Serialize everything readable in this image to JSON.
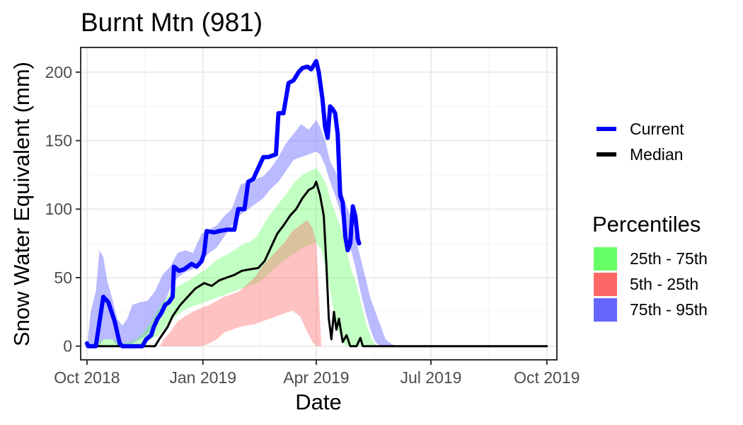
{
  "chart_data": {
    "type": "area",
    "title": "Burnt Mtn (981)",
    "xlabel": "Date",
    "ylabel": "Snow Water Equivalent (mm)",
    "x_ticks": [
      "Oct 2018",
      "Jan 2019",
      "Apr 2019",
      "Jul 2019",
      "Oct 2019"
    ],
    "x_tick_dates": [
      "2018-10-01",
      "2019-01-01",
      "2019-04-01",
      "2019-07-01",
      "2019-10-01"
    ],
    "y_ticks": [
      0,
      50,
      100,
      150,
      200
    ],
    "xlim": [
      "2018-09-26",
      "2019-10-09"
    ],
    "ylim": [
      -10,
      218
    ],
    "grid": true,
    "legend": {
      "placement": "right",
      "lines": [
        {
          "name": "Current",
          "color": "#0000ff"
        },
        {
          "name": "Median",
          "color": "#000000"
        }
      ],
      "percentiles_title": "Percentiles",
      "fills": [
        {
          "name": "25th - 75th",
          "color": "#66ff66"
        },
        {
          "name": "5th - 25th",
          "color": "#ff6666"
        },
        {
          "name": "75th - 95th",
          "color": "#6666ff"
        }
      ]
    },
    "bands": [
      {
        "name": "75th - 95th",
        "color": "#6666ff",
        "opacity": 0.45,
        "points": [
          [
            "2018-10-01",
            0,
            0
          ],
          [
            "2018-10-04",
            0,
            25
          ],
          [
            "2018-10-08",
            0,
            40
          ],
          [
            "2018-10-11",
            0,
            70
          ],
          [
            "2018-10-14",
            5,
            65
          ],
          [
            "2018-10-17",
            5,
            48
          ],
          [
            "2018-10-21",
            5,
            35
          ],
          [
            "2018-10-25",
            0,
            20
          ],
          [
            "2018-10-29",
            0,
            15
          ],
          [
            "2018-11-02",
            0,
            20
          ],
          [
            "2018-11-06",
            2,
            30
          ],
          [
            "2018-11-12",
            5,
            32
          ],
          [
            "2018-11-18",
            8,
            33
          ],
          [
            "2018-11-24",
            15,
            40
          ],
          [
            "2018-11-30",
            28,
            52
          ],
          [
            "2018-12-06",
            42,
            58
          ],
          [
            "2018-12-12",
            50,
            68
          ],
          [
            "2018-12-18",
            54,
            70
          ],
          [
            "2018-12-24",
            56,
            68
          ],
          [
            "2018-12-31",
            62,
            82
          ],
          [
            "2019-01-06",
            68,
            85
          ],
          [
            "2019-01-12",
            72,
            88
          ],
          [
            "2019-01-18",
            80,
            95
          ],
          [
            "2019-01-24",
            88,
            100
          ],
          [
            "2019-01-31",
            96,
            118
          ],
          [
            "2019-02-06",
            100,
            120
          ],
          [
            "2019-02-12",
            104,
            122
          ],
          [
            "2019-02-18",
            108,
            124
          ],
          [
            "2019-02-24",
            115,
            130
          ],
          [
            "2019-03-02",
            120,
            138
          ],
          [
            "2019-03-08",
            128,
            148
          ],
          [
            "2019-03-14",
            136,
            155
          ],
          [
            "2019-03-20",
            138,
            162
          ],
          [
            "2019-03-26",
            140,
            158
          ],
          [
            "2019-04-01",
            142,
            165
          ],
          [
            "2019-04-04",
            140,
            160
          ],
          [
            "2019-04-08",
            132,
            150
          ],
          [
            "2019-04-12",
            120,
            135
          ],
          [
            "2019-04-16",
            110,
            128
          ],
          [
            "2019-04-20",
            98,
            118
          ],
          [
            "2019-04-24",
            85,
            105
          ],
          [
            "2019-04-28",
            72,
            95
          ],
          [
            "2019-05-02",
            58,
            80
          ],
          [
            "2019-05-06",
            40,
            65
          ],
          [
            "2019-05-10",
            25,
            50
          ],
          [
            "2019-05-14",
            12,
            35
          ],
          [
            "2019-05-18",
            3,
            25
          ],
          [
            "2019-05-22",
            0,
            15
          ],
          [
            "2019-05-26",
            0,
            5
          ],
          [
            "2019-05-30",
            0,
            2
          ],
          [
            "2019-06-03",
            0,
            0
          ]
        ]
      },
      {
        "name": "25th - 75th",
        "color": "#66ff66",
        "opacity": 0.4,
        "points": [
          [
            "2018-10-01",
            0,
            0
          ],
          [
            "2018-10-08",
            0,
            3
          ],
          [
            "2018-10-14",
            0,
            5
          ],
          [
            "2018-10-21",
            0,
            5
          ],
          [
            "2018-10-28",
            0,
            2
          ],
          [
            "2018-11-03",
            0,
            3
          ],
          [
            "2018-11-09",
            0,
            5
          ],
          [
            "2018-11-15",
            2,
            10
          ],
          [
            "2018-11-21",
            5,
            18
          ],
          [
            "2018-11-27",
            8,
            28
          ],
          [
            "2018-12-03",
            15,
            35
          ],
          [
            "2018-12-09",
            20,
            42
          ],
          [
            "2018-12-15",
            25,
            45
          ],
          [
            "2018-12-21",
            28,
            48
          ],
          [
            "2018-12-27",
            30,
            52
          ],
          [
            "2019-01-02",
            32,
            55
          ],
          [
            "2019-01-08",
            34,
            60
          ],
          [
            "2019-01-14",
            36,
            64
          ],
          [
            "2019-01-20",
            38,
            67
          ],
          [
            "2019-01-26",
            40,
            70
          ],
          [
            "2019-02-01",
            42,
            74
          ],
          [
            "2019-02-07",
            44,
            76
          ],
          [
            "2019-02-13",
            46,
            80
          ],
          [
            "2019-02-19",
            50,
            90
          ],
          [
            "2019-02-25",
            55,
            98
          ],
          [
            "2019-03-03",
            60,
            105
          ],
          [
            "2019-03-09",
            64,
            112
          ],
          [
            "2019-03-15",
            68,
            120
          ],
          [
            "2019-03-21",
            72,
            125
          ],
          [
            "2019-03-27",
            74,
            128
          ],
          [
            "2019-04-01",
            76,
            130
          ],
          [
            "2019-04-05",
            70,
            125
          ],
          [
            "2019-04-09",
            55,
            118
          ],
          [
            "2019-04-13",
            35,
            105
          ],
          [
            "2019-04-17",
            15,
            95
          ],
          [
            "2019-04-21",
            5,
            85
          ],
          [
            "2019-04-25",
            0,
            70
          ],
          [
            "2019-04-29",
            0,
            55
          ],
          [
            "2019-05-03",
            0,
            45
          ],
          [
            "2019-05-07",
            0,
            30
          ],
          [
            "2019-05-11",
            0,
            15
          ],
          [
            "2019-05-15",
            0,
            5
          ],
          [
            "2019-05-19",
            0,
            0
          ]
        ]
      },
      {
        "name": "5th - 25th",
        "color": "#ff6666",
        "opacity": 0.4,
        "points": [
          [
            "2018-11-28",
            0,
            0
          ],
          [
            "2018-12-01",
            0,
            5
          ],
          [
            "2018-12-06",
            0,
            10
          ],
          [
            "2018-12-12",
            0,
            18
          ],
          [
            "2018-12-18",
            0,
            22
          ],
          [
            "2018-12-24",
            0,
            25
          ],
          [
            "2018-12-31",
            0,
            28
          ],
          [
            "2019-01-06",
            2,
            30
          ],
          [
            "2019-01-12",
            5,
            33
          ],
          [
            "2019-01-18",
            10,
            36
          ],
          [
            "2019-01-24",
            12,
            38
          ],
          [
            "2019-01-30",
            14,
            40
          ],
          [
            "2019-02-05",
            15,
            45
          ],
          [
            "2019-02-11",
            16,
            50
          ],
          [
            "2019-02-17",
            18,
            58
          ],
          [
            "2019-02-23",
            20,
            64
          ],
          [
            "2019-03-01",
            22,
            70
          ],
          [
            "2019-03-07",
            24,
            76
          ],
          [
            "2019-03-13",
            26,
            84
          ],
          [
            "2019-03-19",
            22,
            88
          ],
          [
            "2019-03-25",
            10,
            92
          ],
          [
            "2019-03-29",
            3,
            86
          ],
          [
            "2019-04-01",
            0,
            76
          ],
          [
            "2019-04-03",
            0,
            40
          ],
          [
            "2019-04-05",
            0,
            0
          ]
        ]
      }
    ],
    "series": [
      {
        "name": "Median",
        "color": "#000000",
        "points": [
          [
            "2018-10-01",
            0
          ],
          [
            "2018-11-24",
            0
          ],
          [
            "2018-11-28",
            6
          ],
          [
            "2018-12-04",
            14
          ],
          [
            "2018-12-08",
            22
          ],
          [
            "2018-12-14",
            30
          ],
          [
            "2018-12-20",
            36
          ],
          [
            "2018-12-26",
            42
          ],
          [
            "2019-01-02",
            46
          ],
          [
            "2019-01-08",
            44
          ],
          [
            "2019-01-14",
            48
          ],
          [
            "2019-01-20",
            50
          ],
          [
            "2019-01-26",
            52
          ],
          [
            "2019-02-01",
            55
          ],
          [
            "2019-02-07",
            56
          ],
          [
            "2019-02-14",
            57
          ],
          [
            "2019-02-19",
            62
          ],
          [
            "2019-02-24",
            72
          ],
          [
            "2019-03-01",
            82
          ],
          [
            "2019-03-06",
            88
          ],
          [
            "2019-03-11",
            95
          ],
          [
            "2019-03-16",
            100
          ],
          [
            "2019-03-21",
            108
          ],
          [
            "2019-03-26",
            114
          ],
          [
            "2019-03-30",
            116
          ],
          [
            "2019-04-01",
            120
          ],
          [
            "2019-04-04",
            110
          ],
          [
            "2019-04-07",
            95
          ],
          [
            "2019-04-09",
            60
          ],
          [
            "2019-04-11",
            20
          ],
          [
            "2019-04-13",
            5
          ],
          [
            "2019-04-15",
            25
          ],
          [
            "2019-04-17",
            12
          ],
          [
            "2019-04-19",
            20
          ],
          [
            "2019-04-22",
            3
          ],
          [
            "2019-04-25",
            8
          ],
          [
            "2019-04-28",
            0
          ],
          [
            "2019-05-03",
            0
          ],
          [
            "2019-05-06",
            6
          ],
          [
            "2019-05-08",
            0
          ],
          [
            "2019-10-01",
            0
          ]
        ]
      },
      {
        "name": "Current",
        "color": "#0000ff",
        "points": [
          [
            "2018-10-01",
            2
          ],
          [
            "2018-10-02",
            0
          ],
          [
            "2018-10-08",
            0
          ],
          [
            "2018-10-11",
            18
          ],
          [
            "2018-10-14",
            36
          ],
          [
            "2018-10-18",
            32
          ],
          [
            "2018-10-23",
            18
          ],
          [
            "2018-10-27",
            2
          ],
          [
            "2018-10-29",
            0
          ],
          [
            "2018-11-14",
            0
          ],
          [
            "2018-11-17",
            5
          ],
          [
            "2018-11-21",
            8
          ],
          [
            "2018-11-23",
            14
          ],
          [
            "2018-11-26",
            20
          ],
          [
            "2018-11-29",
            24
          ],
          [
            "2018-12-02",
            30
          ],
          [
            "2018-12-05",
            32
          ],
          [
            "2018-12-08",
            36
          ],
          [
            "2018-12-09",
            58
          ],
          [
            "2018-12-13",
            55
          ],
          [
            "2018-12-17",
            56
          ],
          [
            "2018-12-20",
            58
          ],
          [
            "2018-12-23",
            60
          ],
          [
            "2018-12-27",
            58
          ],
          [
            "2018-12-31",
            62
          ],
          [
            "2019-01-02",
            68
          ],
          [
            "2019-01-04",
            84
          ],
          [
            "2019-01-10",
            83
          ],
          [
            "2019-01-14",
            84
          ],
          [
            "2019-01-20",
            85
          ],
          [
            "2019-01-26",
            85
          ],
          [
            "2019-01-29",
            100
          ],
          [
            "2019-02-03",
            100
          ],
          [
            "2019-02-06",
            120
          ],
          [
            "2019-02-10",
            122
          ],
          [
            "2019-02-14",
            130
          ],
          [
            "2019-02-18",
            138
          ],
          [
            "2019-02-22",
            138
          ],
          [
            "2019-02-28",
            140
          ],
          [
            "2019-03-02",
            170
          ],
          [
            "2019-03-06",
            170
          ],
          [
            "2019-03-10",
            192
          ],
          [
            "2019-03-14",
            194
          ],
          [
            "2019-03-18",
            200
          ],
          [
            "2019-03-21",
            203
          ],
          [
            "2019-03-25",
            204
          ],
          [
            "2019-03-28",
            202
          ],
          [
            "2019-03-30",
            205
          ],
          [
            "2019-04-01",
            208
          ],
          [
            "2019-04-03",
            200
          ],
          [
            "2019-04-06",
            180
          ],
          [
            "2019-04-08",
            160
          ],
          [
            "2019-04-10",
            152
          ],
          [
            "2019-04-12",
            175
          ],
          [
            "2019-04-14",
            173
          ],
          [
            "2019-04-16",
            170
          ],
          [
            "2019-04-18",
            155
          ],
          [
            "2019-04-20",
            110
          ],
          [
            "2019-04-22",
            105
          ],
          [
            "2019-04-24",
            80
          ],
          [
            "2019-04-26",
            70
          ],
          [
            "2019-04-28",
            75
          ],
          [
            "2019-04-30",
            102
          ],
          [
            "2019-05-02",
            95
          ],
          [
            "2019-05-04",
            78
          ],
          [
            "2019-05-05",
            75
          ]
        ]
      }
    ]
  }
}
